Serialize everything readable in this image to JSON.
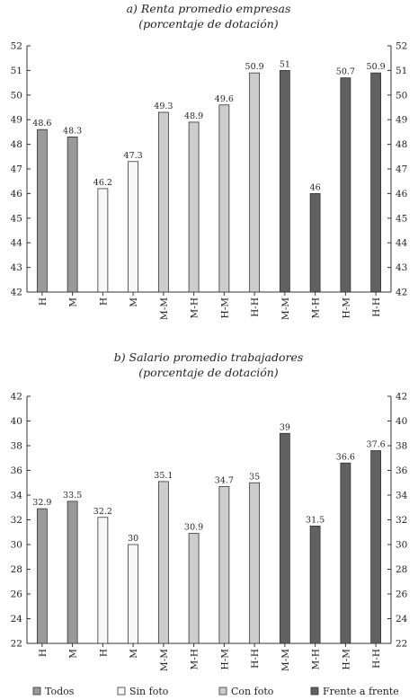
{
  "legend": [
    {
      "label": "Todos",
      "color": "#9a9a9a"
    },
    {
      "label": "Sin foto",
      "color": "#f7f7f7"
    },
    {
      "label": "Con foto",
      "color": "#cdcdcd"
    },
    {
      "label": "Frente a frente",
      "color": "#616161"
    }
  ],
  "chart_data": [
    {
      "type": "bar",
      "title": "a) Renta promedio empresas",
      "subtitle": "(porcentaje de dotación)",
      "categories": [
        "H",
        "M",
        "H",
        "M",
        "M-M",
        "M-H",
        "H-M",
        "H-H",
        "M-M",
        "M-H",
        "H-M",
        "H-H"
      ],
      "groups": [
        "Todos",
        "Todos",
        "Sin foto",
        "Sin foto",
        "Con foto",
        "Con foto",
        "Con foto",
        "Con foto",
        "Frente a frente",
        "Frente a frente",
        "Frente a frente",
        "Frente a frente"
      ],
      "values": [
        48.6,
        48.3,
        46.2,
        47.3,
        49.3,
        48.9,
        49.6,
        50.9,
        51,
        46,
        50.7,
        50.9
      ],
      "value_labels": [
        "48.6",
        "48.3",
        "46.2",
        "47.3",
        "49.3",
        "48.9",
        "49.6",
        "50.9",
        "51",
        "46",
        "50.7",
        "50.9"
      ],
      "ylim": [
        42,
        52
      ],
      "yticks": [
        "42",
        "43",
        "44",
        "45",
        "46",
        "47",
        "48",
        "49",
        "50",
        "51",
        "52"
      ],
      "grid": false,
      "legend_position": "bottom"
    },
    {
      "type": "bar",
      "title": "b) Salario promedio trabajadores",
      "subtitle": "(porcentaje de dotación)",
      "categories": [
        "H",
        "M",
        "H",
        "M",
        "M-M",
        "M-H",
        "H-M",
        "H-H",
        "M-M",
        "M-H",
        "H-M",
        "H-H"
      ],
      "groups": [
        "Todos",
        "Todos",
        "Sin foto",
        "Sin foto",
        "Con foto",
        "Con foto",
        "Con foto",
        "Con foto",
        "Frente a frente",
        "Frente a frente",
        "Frente a frente",
        "Frente a frente"
      ],
      "values": [
        32.9,
        33.5,
        32.2,
        30,
        35.1,
        30.9,
        34.7,
        35,
        39,
        31.5,
        36.6,
        37.6
      ],
      "value_labels": [
        "32.9",
        "33.5",
        "32.2",
        "30",
        "35.1",
        "30.9",
        "34.7",
        "35",
        "39",
        "31.5",
        "36.6",
        "37.6"
      ],
      "ylim": [
        22,
        42
      ],
      "yticks": [
        "22",
        "24",
        "26",
        "28",
        "30",
        "32",
        "34",
        "36",
        "38",
        "40",
        "42"
      ],
      "grid": false,
      "legend_position": "bottom"
    }
  ]
}
